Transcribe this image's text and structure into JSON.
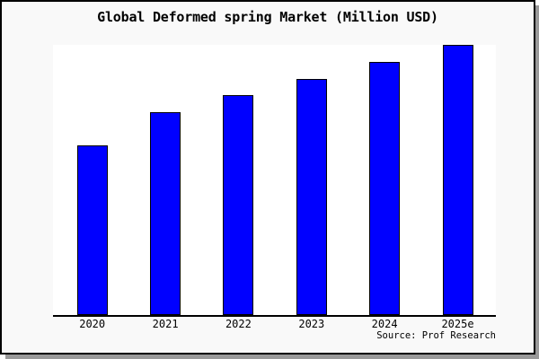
{
  "chart_data": {
    "type": "bar",
    "title": "Global Deformed spring Market (Million USD)",
    "categories": [
      "2020",
      "2021",
      "2022",
      "2023",
      "2024",
      "2025e"
    ],
    "values": [
      62.8,
      75.1,
      81.4,
      87.4,
      93.7,
      100
    ],
    "xlabel": "",
    "ylabel": "",
    "ylim": [
      0,
      100
    ],
    "grid": false,
    "legend": false,
    "source": "Source: Prof Research",
    "colors": {
      "bar_fill": "#0000ff",
      "bar_edge": "#000000",
      "figure_background": "#f9f9f9",
      "plot_background": "#ffffff",
      "frame_border": "#000000",
      "shadow": "#999999",
      "text": "#000000"
    }
  }
}
